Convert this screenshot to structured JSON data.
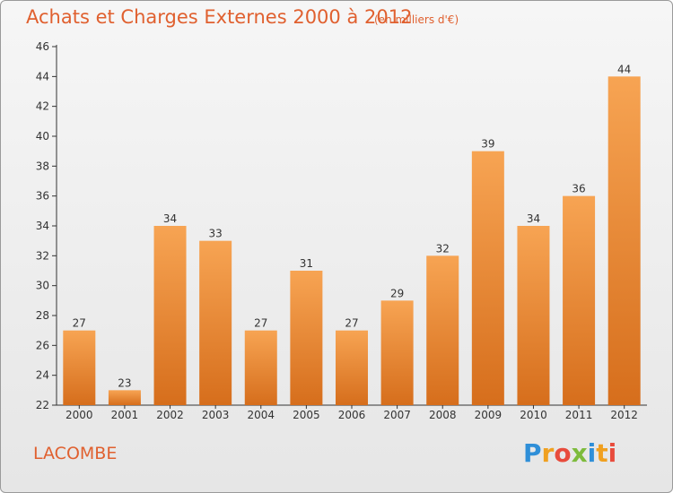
{
  "header": {
    "title": "Achats et Charges Externes 2000 à 2012",
    "unit": "(en milliers d'€)"
  },
  "footer": {
    "commune": "LACOMBE",
    "logo_text": "Proxiti"
  },
  "colors": {
    "title": "#e0602f",
    "bar_top": "#f7a453",
    "bar_bottom": "#d66e1c",
    "axis": "#333333"
  },
  "chart_data": {
    "type": "bar",
    "title": "Achats et Charges Externes 2000 à 2012",
    "xlabel": "",
    "ylabel": "",
    "categories": [
      "2000",
      "2001",
      "2002",
      "2003",
      "2004",
      "2005",
      "2006",
      "2007",
      "2008",
      "2009",
      "2010",
      "2011",
      "2012"
    ],
    "values": [
      27,
      23,
      34,
      33,
      27,
      31,
      27,
      29,
      32,
      39,
      34,
      36,
      44
    ],
    "ylim": [
      22,
      46
    ],
    "yticks": [
      22,
      24,
      26,
      28,
      30,
      32,
      34,
      36,
      38,
      40,
      42,
      44,
      46
    ],
    "grid": false,
    "legend": "none"
  }
}
